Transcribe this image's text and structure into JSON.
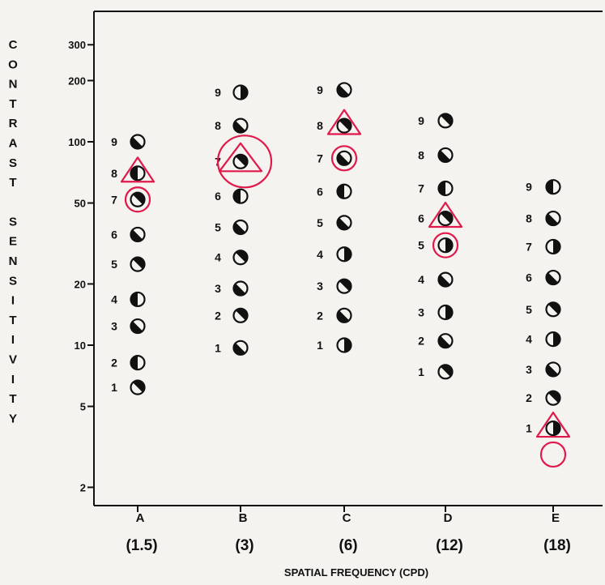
{
  "chart_data": {
    "type": "scatter",
    "ylabel": "CONTRAST SENSITIVITY",
    "xlabel": "SPATIAL FREQUENCY (CPD)",
    "yscale": "log",
    "ylim": [
      2,
      400
    ],
    "yticks": [
      2,
      5,
      10,
      20,
      50,
      100,
      200,
      300
    ],
    "grid": false,
    "categories": [
      {
        "letter": "A",
        "freq": "(1.5)"
      },
      {
        "letter": "B",
        "freq": "(3)"
      },
      {
        "letter": "C",
        "freq": "(6)"
      },
      {
        "letter": "D",
        "freq": "(12)"
      },
      {
        "letter": "E",
        "freq": "(18)"
      }
    ],
    "series": [
      {
        "category": "A",
        "points": [
          {
            "level": "1",
            "cs": 6.2,
            "half": "ne"
          },
          {
            "level": "2",
            "cs": 8.2,
            "half": "w"
          },
          {
            "level": "3",
            "cs": 12.4,
            "half": "sw"
          },
          {
            "level": "4",
            "cs": 16.8,
            "half": "w"
          },
          {
            "level": "5",
            "cs": 25,
            "half": "ne"
          },
          {
            "level": "6",
            "cs": 35,
            "half": "sw"
          },
          {
            "level": "7",
            "cs": 52,
            "half": "ne"
          },
          {
            "level": "8",
            "cs": 70,
            "half": "w"
          },
          {
            "level": "9",
            "cs": 100,
            "half": "sw"
          }
        ],
        "marks": [
          {
            "shape": "triangle",
            "level": "8"
          },
          {
            "shape": "circle",
            "level": "7"
          }
        ]
      },
      {
        "category": "B",
        "points": [
          {
            "level": "1",
            "cs": 9.7,
            "half": "sw"
          },
          {
            "level": "2",
            "cs": 14,
            "half": "ne"
          },
          {
            "level": "3",
            "cs": 19,
            "half": "sw"
          },
          {
            "level": "4",
            "cs": 27,
            "half": "ne"
          },
          {
            "level": "5",
            "cs": 38,
            "half": "sw"
          },
          {
            "level": "6",
            "cs": 54,
            "half": "w"
          },
          {
            "level": "7",
            "cs": 80,
            "half": "ne"
          },
          {
            "level": "8",
            "cs": 120,
            "half": "sw"
          },
          {
            "level": "9",
            "cs": 175,
            "half": "e"
          }
        ],
        "marks": [
          {
            "shape": "triangle",
            "level": "7"
          },
          {
            "shape": "circle",
            "level": "7"
          }
        ]
      },
      {
        "category": "C",
        "points": [
          {
            "level": "1",
            "cs": 10,
            "half": "e"
          },
          {
            "level": "2",
            "cs": 14,
            "half": "sw"
          },
          {
            "level": "3",
            "cs": 19.5,
            "half": "ne"
          },
          {
            "level": "4",
            "cs": 28,
            "half": "e"
          },
          {
            "level": "5",
            "cs": 40,
            "half": "sw"
          },
          {
            "level": "6",
            "cs": 57,
            "half": "w"
          },
          {
            "level": "7",
            "cs": 83,
            "half": "sw"
          },
          {
            "level": "8",
            "cs": 120,
            "half": "ne"
          },
          {
            "level": "9",
            "cs": 180,
            "half": "sw"
          }
        ],
        "marks": [
          {
            "shape": "triangle",
            "level": "8"
          },
          {
            "shape": "circle",
            "level": "7"
          }
        ]
      },
      {
        "category": "D",
        "points": [
          {
            "level": "1",
            "cs": 7.4,
            "half": "ne"
          },
          {
            "level": "2",
            "cs": 10.5,
            "half": "sw"
          },
          {
            "level": "3",
            "cs": 14.5,
            "half": "e"
          },
          {
            "level": "4",
            "cs": 21,
            "half": "sw"
          },
          {
            "level": "5",
            "cs": 31,
            "half": "e"
          },
          {
            "level": "6",
            "cs": 42,
            "half": "ne"
          },
          {
            "level": "7",
            "cs": 59,
            "half": "w"
          },
          {
            "level": "8",
            "cs": 86,
            "half": "sw"
          },
          {
            "level": "9",
            "cs": 127,
            "half": "ne"
          }
        ],
        "marks": [
          {
            "shape": "triangle",
            "level": "6"
          },
          {
            "shape": "circle",
            "level": "5"
          }
        ]
      },
      {
        "category": "E",
        "points": [
          {
            "level": "1",
            "cs": 3.9,
            "half": "e"
          },
          {
            "level": "2",
            "cs": 5.5,
            "half": "ne"
          },
          {
            "level": "3",
            "cs": 7.6,
            "half": "sw"
          },
          {
            "level": "4",
            "cs": 10.7,
            "half": "e"
          },
          {
            "level": "5",
            "cs": 15,
            "half": "ne"
          },
          {
            "level": "6",
            "cs": 21.5,
            "half": "sw"
          },
          {
            "level": "7",
            "cs": 30.5,
            "half": "e"
          },
          {
            "level": "8",
            "cs": 42,
            "half": "sw"
          },
          {
            "level": "9",
            "cs": 60,
            "half": "w"
          }
        ],
        "marks": [
          {
            "shape": "triangle",
            "level": "1"
          },
          {
            "shape": "circle",
            "cs": 2.9
          }
        ]
      }
    ]
  },
  "colors": {
    "ink": "#111111",
    "annotation": "#e0194a",
    "paper": "#f4f3ef"
  }
}
